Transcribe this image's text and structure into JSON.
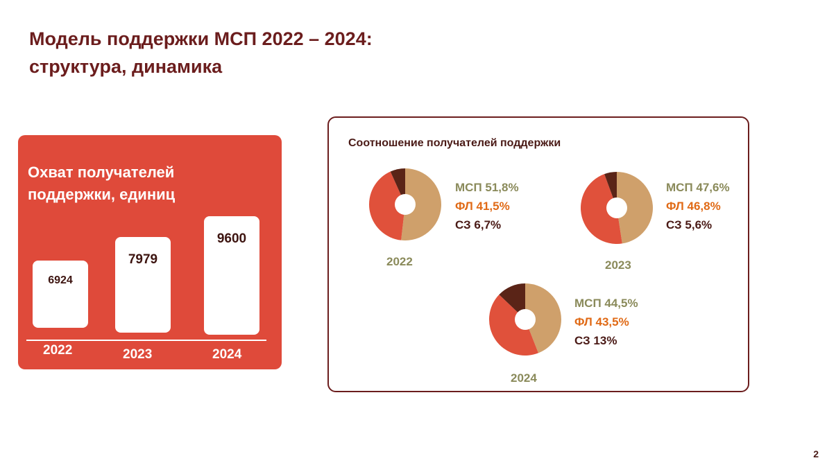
{
  "title": {
    "line1": "Модель поддержки МСП 2022 – 2024:",
    "line2": "структура, динамика"
  },
  "colors": {
    "msp": "#cfa06b",
    "fl": "#e0513b",
    "sz": "#5a2417",
    "msp_text": "#8a8a5a",
    "fl_text": "#e06a16",
    "sz_text": "#4a1a16"
  },
  "chart_data": [
    {
      "type": "bar",
      "title": "Охват получателей поддержки, единиц",
      "title_line1": "Охват получателей",
      "title_line2": "поддержки, единиц",
      "categories": [
        "2022",
        "2023",
        "2024"
      ],
      "values": [
        6924,
        7979,
        9600
      ],
      "value_labels": [
        "6924",
        "7979",
        "9600"
      ]
    },
    {
      "type": "pie",
      "title": "Соотношение получателей поддержки",
      "charts": [
        {
          "year": "2022",
          "slices": [
            {
              "name": "МСП",
              "value": 51.8,
              "label": "МСП 51,8%"
            },
            {
              "name": "ФЛ",
              "value": 41.5,
              "label": "ФЛ 41,5%"
            },
            {
              "name": "СЗ",
              "value": 6.7,
              "label": "СЗ 6,7%"
            }
          ]
        },
        {
          "year": "2023",
          "slices": [
            {
              "name": "МСП",
              "value": 47.6,
              "label": "МСП 47,6%"
            },
            {
              "name": "ФЛ",
              "value": 46.8,
              "label": "ФЛ 46,8%"
            },
            {
              "name": "СЗ",
              "value": 5.6,
              "label": "СЗ 5,6%"
            }
          ]
        },
        {
          "year": "2024",
          "slices": [
            {
              "name": "МСП",
              "value": 44.5,
              "label": "МСП 44,5%"
            },
            {
              "name": "ФЛ",
              "value": 43.5,
              "label": "ФЛ 43,5%"
            },
            {
              "name": "СЗ",
              "value": 13,
              "label": "СЗ 13%"
            }
          ]
        }
      ]
    }
  ],
  "page_number": "2"
}
